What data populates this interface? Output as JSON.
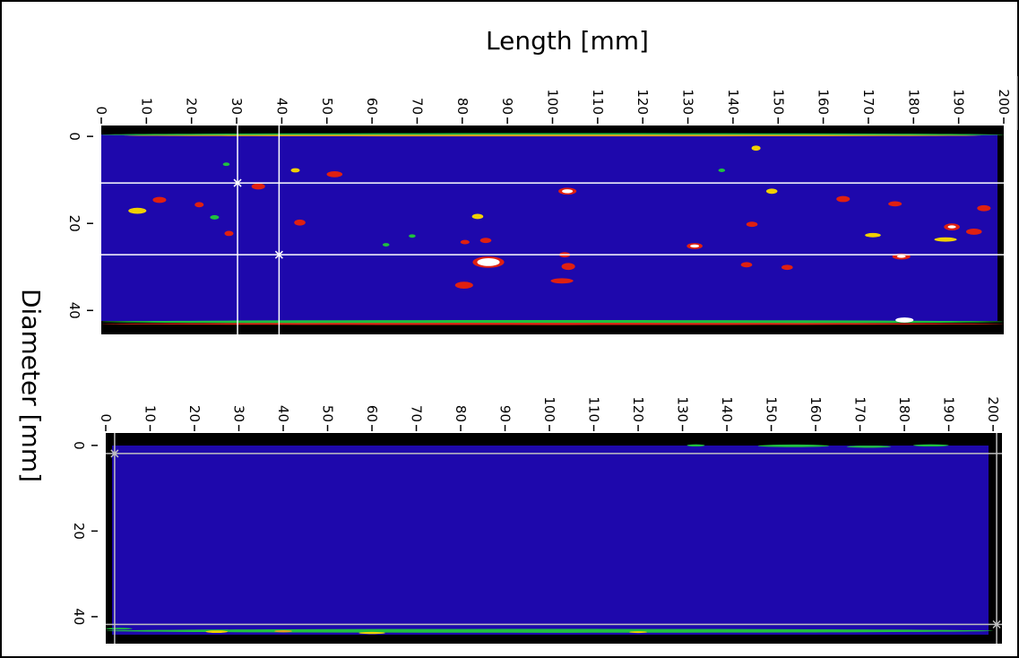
{
  "chart_data": [
    {
      "type": "heatmap",
      "title": "Length [mm]",
      "ylabel": "Diameter [mm]",
      "xlim": [
        0,
        200
      ],
      "ylim": [
        -2.5,
        45.5
      ],
      "xticks": [
        0,
        10,
        20,
        30,
        40,
        50,
        60,
        70,
        80,
        90,
        100,
        110,
        120,
        130,
        140,
        150,
        160,
        170,
        180,
        190,
        200
      ],
      "yticks": [
        0,
        20,
        40
      ],
      "background": "#1e08ac",
      "frame": "#000000",
      "cursor_color": "#ffffff",
      "cursors": [
        {
          "x": 30.2,
          "y": 10.7
        },
        {
          "x": 39.4,
          "y": 27.2
        }
      ],
      "spots": [
        {
          "x": 100,
          "y": -0.4,
          "w": 200,
          "h": 0.7,
          "color": "#20c040"
        },
        {
          "x": 100,
          "y": -0.2,
          "w": 190,
          "h": 0.3,
          "color": "#e0a020"
        },
        {
          "x": 100,
          "y": 42.6,
          "w": 200,
          "h": 0.8,
          "color": "#20c040"
        },
        {
          "x": 100,
          "y": 43.1,
          "w": 200,
          "h": 0.5,
          "color": "#e02010"
        },
        {
          "x": 178,
          "y": 42.2,
          "w": 4,
          "h": 1.2,
          "color": "#ffffff"
        },
        {
          "x": 12.9,
          "y": 14.6,
          "w": 3,
          "h": 1.4,
          "color": "#e02010"
        },
        {
          "x": 8,
          "y": 17.1,
          "w": 4,
          "h": 1.4,
          "color": "#f0d000"
        },
        {
          "x": 21.7,
          "y": 15.7,
          "w": 2,
          "h": 1.2,
          "color": "#e02010"
        },
        {
          "x": 27.7,
          "y": 6.4,
          "w": 1.5,
          "h": 0.8,
          "color": "#20c040"
        },
        {
          "x": 25.1,
          "y": 18.6,
          "w": 2,
          "h": 1,
          "color": "#20c040"
        },
        {
          "x": 28.3,
          "y": 22.3,
          "w": 2,
          "h": 1.2,
          "color": "#e02010"
        },
        {
          "x": 34.8,
          "y": 11.5,
          "w": 3,
          "h": 1.4,
          "color": "#e02010"
        },
        {
          "x": 43,
          "y": 7.8,
          "w": 2,
          "h": 1,
          "color": "#f0d000"
        },
        {
          "x": 51.7,
          "y": 8.7,
          "w": 3.5,
          "h": 1.4,
          "color": "#e02010"
        },
        {
          "x": 44,
          "y": 19.8,
          "w": 2.5,
          "h": 1.4,
          "color": "#e02010"
        },
        {
          "x": 68.9,
          "y": 22.9,
          "w": 1.5,
          "h": 0.8,
          "color": "#20c040"
        },
        {
          "x": 63.1,
          "y": 24.9,
          "w": 1.5,
          "h": 0.8,
          "color": "#20c040"
        },
        {
          "x": 80.4,
          "y": 34.2,
          "w": 4,
          "h": 1.6,
          "color": "#e02010"
        },
        {
          "x": 85.8,
          "y": 28.9,
          "w": 7,
          "h": 2.6,
          "color": "#e02010"
        },
        {
          "x": 85.8,
          "y": 28.9,
          "w": 5,
          "h": 1.8,
          "color": "#ffffff"
        },
        {
          "x": 83.4,
          "y": 18.4,
          "w": 2.5,
          "h": 1.2,
          "color": "#f0d000"
        },
        {
          "x": 85.2,
          "y": 23.9,
          "w": 2.5,
          "h": 1.2,
          "color": "#e02010"
        },
        {
          "x": 80.6,
          "y": 24.3,
          "w": 2,
          "h": 1,
          "color": "#e02010"
        },
        {
          "x": 103.3,
          "y": 12.6,
          "w": 4,
          "h": 1.6,
          "color": "#e02010"
        },
        {
          "x": 103.3,
          "y": 12.6,
          "w": 2.4,
          "h": 0.9,
          "color": "#ffffff"
        },
        {
          "x": 103.5,
          "y": 29.9,
          "w": 3,
          "h": 1.6,
          "color": "#e02010"
        },
        {
          "x": 102.1,
          "y": 33.2,
          "w": 5,
          "h": 1.2,
          "color": "#e02010"
        },
        {
          "x": 102.7,
          "y": 27.2,
          "w": 2.5,
          "h": 1.2,
          "color": "#e02010"
        },
        {
          "x": 131.5,
          "y": 25.2,
          "w": 3.5,
          "h": 1.4,
          "color": "#e02010"
        },
        {
          "x": 131.5,
          "y": 25.2,
          "w": 2,
          "h": 0.7,
          "color": "#ffffff"
        },
        {
          "x": 137.5,
          "y": 7.8,
          "w": 1.5,
          "h": 0.8,
          "color": "#20c040"
        },
        {
          "x": 145.1,
          "y": 2.7,
          "w": 2,
          "h": 1.2,
          "color": "#f0d000"
        },
        {
          "x": 144.2,
          "y": 20.2,
          "w": 2.5,
          "h": 1.2,
          "color": "#e02010"
        },
        {
          "x": 143,
          "y": 29.5,
          "w": 2.5,
          "h": 1.2,
          "color": "#e02010"
        },
        {
          "x": 148.6,
          "y": 12.6,
          "w": 2.5,
          "h": 1.2,
          "color": "#f0d000"
        },
        {
          "x": 152,
          "y": 30.1,
          "w": 2.5,
          "h": 1.2,
          "color": "#e02010"
        },
        {
          "x": 164.4,
          "y": 14.4,
          "w": 3,
          "h": 1.4,
          "color": "#e02010"
        },
        {
          "x": 171,
          "y": 22.7,
          "w": 3.5,
          "h": 1,
          "color": "#f0d000"
        },
        {
          "x": 175.9,
          "y": 15.5,
          "w": 3,
          "h": 1.2,
          "color": "#e02010"
        },
        {
          "x": 177.3,
          "y": 27.6,
          "w": 4,
          "h": 1.4,
          "color": "#e02010"
        },
        {
          "x": 177.3,
          "y": 27.6,
          "w": 2,
          "h": 0.6,
          "color": "#ffffff"
        },
        {
          "x": 188.5,
          "y": 20.8,
          "w": 3.5,
          "h": 1.6,
          "color": "#e02010"
        },
        {
          "x": 188.5,
          "y": 20.8,
          "w": 1.8,
          "h": 0.7,
          "color": "#ffffff"
        },
        {
          "x": 193.4,
          "y": 21.9,
          "w": 3.5,
          "h": 1.4,
          "color": "#e02010"
        },
        {
          "x": 195.6,
          "y": 16.5,
          "w": 3,
          "h": 1.4,
          "color": "#e02010"
        },
        {
          "x": 187.1,
          "y": 23.7,
          "w": 5,
          "h": 1,
          "color": "#f0d000"
        }
      ]
    },
    {
      "type": "heatmap",
      "xlim": [
        0,
        202
      ],
      "ylim": [
        -2.9,
        46.3
      ],
      "xticks": [
        0,
        10,
        20,
        30,
        40,
        50,
        60,
        70,
        80,
        90,
        100,
        110,
        120,
        130,
        140,
        150,
        160,
        170,
        180,
        190,
        200
      ],
      "yticks": [
        0,
        20,
        40
      ],
      "background": "#1e08ac",
      "frame": "#000000",
      "cursor_color": "#c0c0c0",
      "cursors": [
        {
          "x": 2,
          "y": 1.9
        },
        {
          "x": 200.8,
          "y": 41.8
        }
      ],
      "spots": [
        {
          "x": 133,
          "y": 0,
          "w": 4,
          "h": 0.5,
          "color": "#20c040"
        },
        {
          "x": 155,
          "y": 0.1,
          "w": 16,
          "h": 0.6,
          "color": "#20c040"
        },
        {
          "x": 172,
          "y": 0.3,
          "w": 10,
          "h": 0.5,
          "color": "#20c040"
        },
        {
          "x": 186,
          "y": 0,
          "w": 8,
          "h": 0.5,
          "color": "#20c040"
        },
        {
          "x": 100,
          "y": 43.3,
          "w": 200,
          "h": 0.9,
          "color": "#20c040"
        },
        {
          "x": 3,
          "y": 42.8,
          "w": 6,
          "h": 0.4,
          "color": "#20c040"
        },
        {
          "x": 25,
          "y": 43.5,
          "w": 5,
          "h": 0.6,
          "color": "#f0d000"
        },
        {
          "x": 40,
          "y": 43.4,
          "w": 4,
          "h": 0.5,
          "color": "#e0a020"
        },
        {
          "x": 60,
          "y": 43.8,
          "w": 6,
          "h": 0.5,
          "color": "#f0d000"
        },
        {
          "x": 120,
          "y": 43.6,
          "w": 4,
          "h": 0.4,
          "color": "#f0d000"
        }
      ]
    }
  ]
}
